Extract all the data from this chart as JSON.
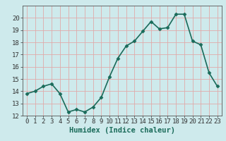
{
  "x": [
    0,
    1,
    2,
    3,
    4,
    5,
    6,
    7,
    8,
    9,
    10,
    11,
    12,
    13,
    14,
    15,
    16,
    17,
    18,
    19,
    20,
    21,
    22,
    23
  ],
  "y": [
    13.8,
    14.0,
    14.4,
    14.6,
    13.8,
    12.3,
    12.5,
    12.3,
    12.7,
    13.5,
    15.2,
    16.7,
    17.7,
    18.1,
    18.9,
    19.7,
    19.1,
    19.2,
    20.3,
    20.3,
    18.1,
    17.8,
    15.5,
    14.4
  ],
  "line_color": "#1a6b5a",
  "marker": "D",
  "marker_size": 2.5,
  "bg_color": "#ceeaec",
  "grid_color": "#e0aaaa",
  "xlabel": "Humidex (Indice chaleur)",
  "ylim": [
    12,
    21
  ],
  "xlim": [
    -0.5,
    23.5
  ],
  "yticks": [
    12,
    13,
    14,
    15,
    16,
    17,
    18,
    19,
    20
  ],
  "xticks": [
    0,
    1,
    2,
    3,
    4,
    5,
    6,
    7,
    8,
    9,
    10,
    11,
    12,
    13,
    14,
    15,
    16,
    17,
    18,
    19,
    20,
    21,
    22,
    23
  ],
  "xlabel_fontsize": 7.5,
  "tick_fontsize": 6.5,
  "linewidth": 1.2
}
